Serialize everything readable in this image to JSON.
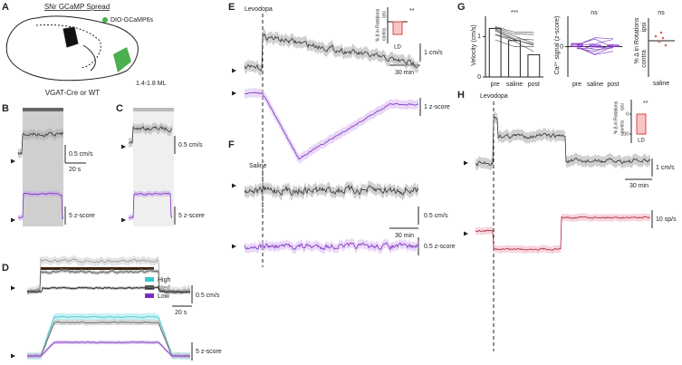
{
  "panels": {
    "A": {
      "letter": "A",
      "title": "SNr GCaMP Spread",
      "legend": "DIO-GCaMP6s",
      "caption": "VGAT-Cre or WT",
      "ml": "1.4-1.8 ML"
    },
    "B": {
      "letter": "B",
      "speed_scale": "0.5 cm/s",
      "time_scale": "20 s",
      "z_scale": "5 z-score"
    },
    "C": {
      "letter": "C",
      "speed_scale": "0.5 cm/s",
      "z_scale": "5 z-score"
    },
    "D": {
      "letter": "D",
      "legend": [
        {
          "name": "High",
          "color": "#3cc8d0"
        },
        {
          "name": "Med",
          "color": "#555555"
        },
        {
          "name": "Low",
          "color": "#7b2fbf"
        }
      ],
      "speed_scale": "0.5 cm/s",
      "time_scale": "20 s",
      "z_scale": "5 z-score"
    },
    "E": {
      "letter": "E",
      "drug": "Levodopa",
      "speed_scale": "1 cm/s",
      "time_scale": "30 min",
      "z_scale": "1 z-score",
      "inset": {
        "ylabel": "% Δ in Rotations",
        "ipsi": "ipsi",
        "contra": "contra",
        "sig": "**",
        "category": "LD"
      }
    },
    "F": {
      "letter": "F",
      "drug": "Saline",
      "speed_scale": "0.5 cm/s",
      "time_scale": "30 min",
      "z_scale": "0.5 z-score"
    },
    "G": {
      "letter": "G",
      "velocity": {
        "ylabel": "Velocity (cm/s)",
        "categories": [
          "pre",
          "saline",
          "post"
        ],
        "values": [
          1.2,
          0.9,
          0.55
        ],
        "ylim": [
          0,
          1.5
        ],
        "yticks": [
          0,
          1
        ],
        "sig": "***"
      },
      "calcium": {
        "ylabel": "Ca²⁺ signal (z-score)",
        "categories": [
          "pre",
          "saline",
          "post"
        ],
        "values": [
          0.1,
          0.05,
          0.05
        ],
        "ylim": [
          -1,
          1
        ],
        "yticks": [
          0
        ],
        "sig": "ns"
      },
      "rotations": {
        "ylabel": "% Δ in Rotations",
        "ipsi": "ipsi",
        "contra": "contra",
        "category": "saline",
        "sig": "ns"
      }
    },
    "H": {
      "letter": "H",
      "drug": "Levodopa",
      "speed_scale": "1 cm/s",
      "time_scale": "30 min",
      "rate_scale": "10 sp/s",
      "inset": {
        "ylabel": "% Δ in Rotations",
        "ipsi": "ipsi",
        "contra": "contra",
        "sig": "**",
        "category": "LD",
        "yticks": [
          0,
          -100
        ]
      }
    }
  }
}
